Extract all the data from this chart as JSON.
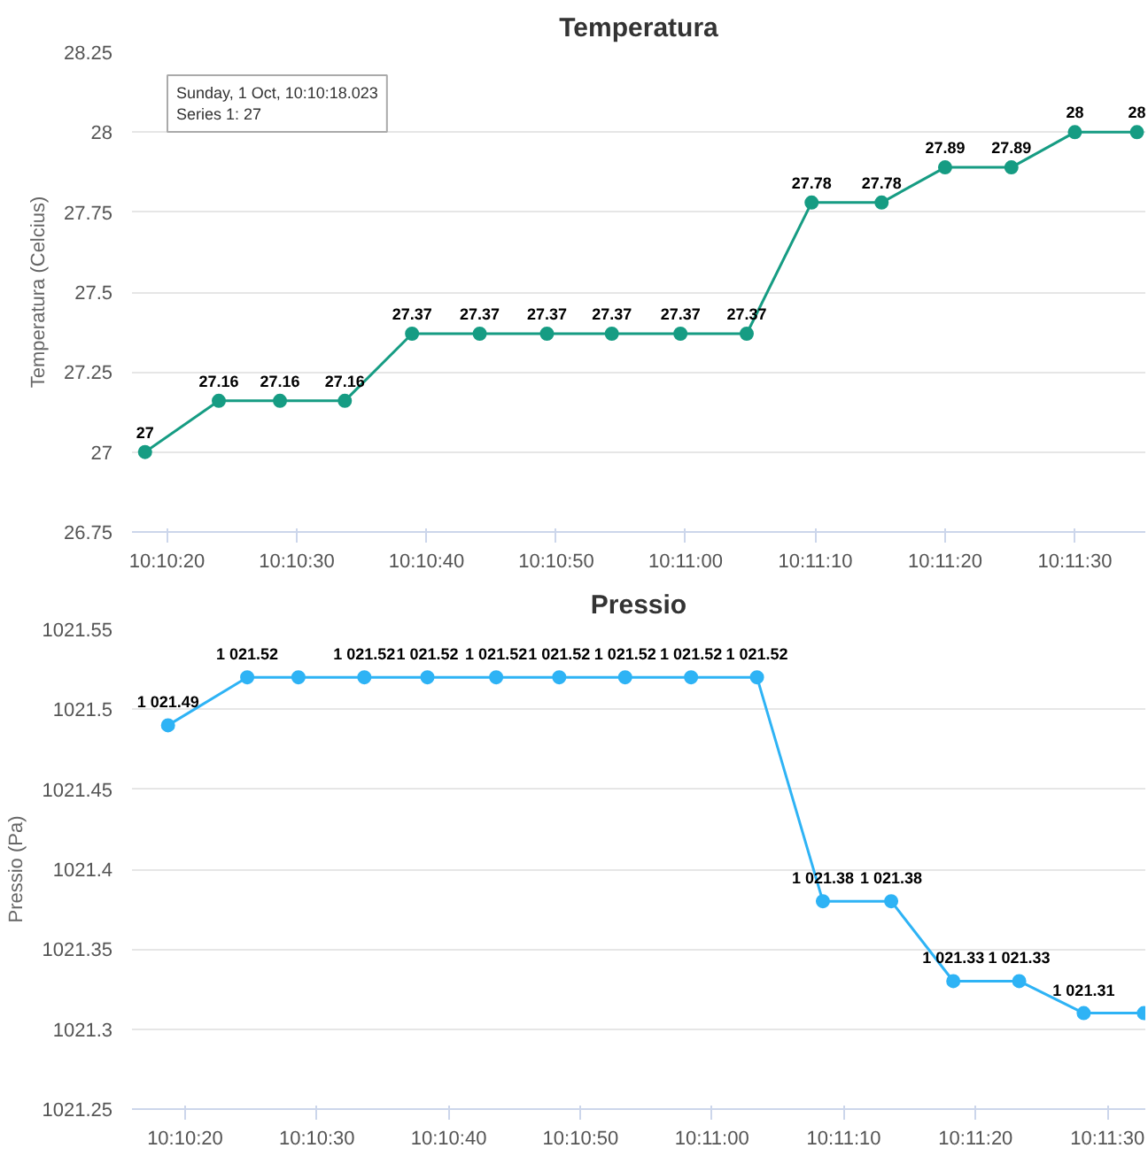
{
  "chart_data": [
    {
      "type": "line",
      "title": "Temperatura",
      "ylabel": "Temperatura (Celcius)",
      "x": [
        10.17175,
        10.17333,
        10.17464,
        10.17603,
        10.17747,
        10.17892,
        10.18036,
        10.18175,
        10.18322,
        10.18464,
        10.18603,
        10.18753,
        10.18889,
        10.19031,
        10.19167,
        10.193
      ],
      "series": [
        {
          "color": "#169c83",
          "values": [
            27,
            27.16,
            27.16,
            27.16,
            27.37,
            27.37,
            27.37,
            27.37,
            27.37,
            27.37,
            27.78,
            27.78,
            27.89,
            27.89,
            28,
            28
          ],
          "value_labels": [
            "27",
            "27.16",
            "27.16",
            "27.16",
            "27.37",
            "27.37",
            "27.37",
            "27.37",
            "27.37",
            "27.37",
            "27.78",
            "27.78",
            "27.89",
            "27.89",
            "28",
            "28"
          ]
        }
      ],
      "xlim": [
        10.17147,
        10.19318
      ],
      "xticks": [
        {
          "value": 10.17222,
          "label": "10:10:20"
        },
        {
          "value": 10.175,
          "label": "10:10:30"
        },
        {
          "value": 10.17778,
          "label": "10:10:40"
        },
        {
          "value": 10.18056,
          "label": "10:10:50"
        },
        {
          "value": 10.18333,
          "label": "10:11:00"
        },
        {
          "value": 10.18611,
          "label": "10:11:10"
        },
        {
          "value": 10.18889,
          "label": "10:11:20"
        },
        {
          "value": 10.19167,
          "label": "10:11:30"
        }
      ],
      "ylim": [
        26.75,
        28.25
      ],
      "yticks": [
        26.75,
        27,
        27.25,
        27.5,
        27.75,
        28,
        28.25
      ],
      "annotations": [
        "Sunday, 1 Oct, 10:10:18.023\nSeries 1: 27"
      ],
      "grid": "y",
      "marker": "circle",
      "line_style": "solid"
    },
    {
      "type": "line",
      "title": "Pressio",
      "ylabel": "Pressio (Pa)",
      "x": [
        10.17186,
        10.17353,
        10.17461,
        10.176,
        10.17733,
        10.17878,
        10.18011,
        10.1815,
        10.18289,
        10.18428,
        10.18567,
        10.18711,
        10.18842,
        10.18981,
        10.19117,
        10.19244
      ],
      "series": [
        {
          "color": "#2eb3f5",
          "values": [
            1021.49,
            1021.52,
            1021.52,
            1021.52,
            1021.52,
            1021.52,
            1021.52,
            1021.52,
            1021.52,
            1021.52,
            1021.38,
            1021.38,
            1021.33,
            1021.33,
            1021.31,
            1021.31
          ],
          "value_labels": [
            "1 021.49",
            "1 021.52",
            null,
            "1 021.52",
            "1 021.52",
            "1 021.52",
            "1 021.52",
            "1 021.52",
            "1 021.52",
            "1 021.52",
            "1 021.38",
            "1 021.38",
            "1 021.33",
            "1 021.33",
            "1 021.31",
            null
          ]
        }
      ],
      "xlim": [
        10.1711,
        10.19247
      ],
      "xticks": [
        {
          "value": 10.17222,
          "label": "10:10:20"
        },
        {
          "value": 10.175,
          "label": "10:10:30"
        },
        {
          "value": 10.17778,
          "label": "10:10:40"
        },
        {
          "value": 10.18056,
          "label": "10:10:50"
        },
        {
          "value": 10.18333,
          "label": "10:11:00"
        },
        {
          "value": 10.18611,
          "label": "10:11:10"
        },
        {
          "value": 10.18889,
          "label": "10:11:20"
        },
        {
          "value": 10.19167,
          "label": "10:11:30"
        }
      ],
      "ylim": [
        1021.25,
        1021.55
      ],
      "yticks": [
        1021.25,
        1021.3,
        1021.35,
        1021.4,
        1021.45,
        1021.5,
        1021.55
      ],
      "grid": "y",
      "marker": "circle",
      "line_style": "solid"
    }
  ]
}
